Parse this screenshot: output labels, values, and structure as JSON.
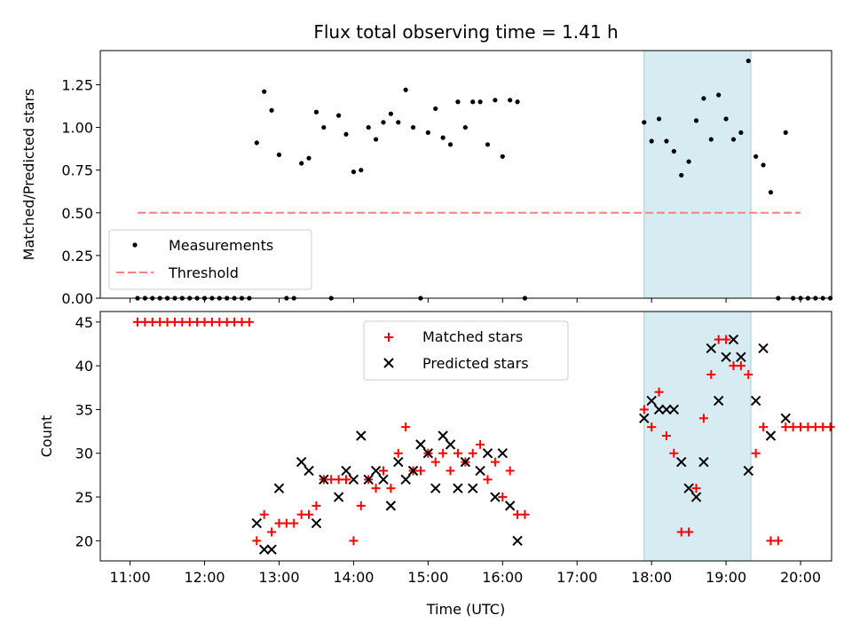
{
  "chart_data": [
    {
      "type": "scatter",
      "title": "Flux total observing time = 1.41 h",
      "ylabel": "Matched/Predicted stars",
      "ylim": [
        0,
        1.45
      ],
      "yticks": [
        0,
        0.25,
        0.5,
        0.75,
        1.0,
        1.25
      ],
      "ytick_labels": [
        "0.00",
        "0.25",
        "0.50",
        "0.75",
        "1.00",
        "1.25"
      ],
      "legend_position": "lower-left",
      "highlight_span": [
        "17:54",
        "19:20"
      ],
      "threshold": {
        "name": "Threshold",
        "y": 0.5,
        "x_range": [
          "11:06",
          "20:00"
        ],
        "color": "#ff7f7f"
      },
      "series": [
        {
          "name": "Measurements",
          "color": "#000000",
          "points": [
            [
              "11:06",
              0
            ],
            [
              "11:12",
              0
            ],
            [
              "11:18",
              0
            ],
            [
              "11:24",
              0
            ],
            [
              "11:30",
              0
            ],
            [
              "11:36",
              0
            ],
            [
              "11:42",
              0
            ],
            [
              "11:48",
              0
            ],
            [
              "11:54",
              0
            ],
            [
              "12:00",
              0
            ],
            [
              "12:06",
              0
            ],
            [
              "12:12",
              0
            ],
            [
              "12:18",
              0
            ],
            [
              "12:24",
              0
            ],
            [
              "12:30",
              0
            ],
            [
              "12:36",
              0
            ],
            [
              "12:42",
              0.91
            ],
            [
              "12:48",
              1.21
            ],
            [
              "12:54",
              1.1
            ],
            [
              "13:00",
              0.84
            ],
            [
              "13:06",
              0
            ],
            [
              "13:12",
              0
            ],
            [
              "13:18",
              0.79
            ],
            [
              "13:24",
              0.82
            ],
            [
              "13:30",
              1.09
            ],
            [
              "13:36",
              1.0
            ],
            [
              "13:42",
              0
            ],
            [
              "13:48",
              1.07
            ],
            [
              "13:54",
              0.96
            ],
            [
              "14:00",
              0.74
            ],
            [
              "14:06",
              0.75
            ],
            [
              "14:12",
              1.0
            ],
            [
              "14:18",
              0.93
            ],
            [
              "14:24",
              1.03
            ],
            [
              "14:30",
              1.08
            ],
            [
              "14:36",
              1.03
            ],
            [
              "14:42",
              1.22
            ],
            [
              "14:48",
              1.0
            ],
            [
              "14:54",
              0
            ],
            [
              "15:00",
              0.97
            ],
            [
              "15:06",
              1.11
            ],
            [
              "15:12",
              0.94
            ],
            [
              "15:18",
              0.9
            ],
            [
              "15:24",
              1.15
            ],
            [
              "15:30",
              1.0
            ],
            [
              "15:36",
              1.15
            ],
            [
              "15:42",
              1.15
            ],
            [
              "15:48",
              0.9
            ],
            [
              "15:54",
              1.16
            ],
            [
              "16:00",
              0.83
            ],
            [
              "16:06",
              1.16
            ],
            [
              "16:12",
              1.15
            ],
            [
              "16:18",
              0
            ],
            [
              "17:54",
              1.03
            ],
            [
              "18:00",
              0.92
            ],
            [
              "18:06",
              1.05
            ],
            [
              "18:12",
              0.92
            ],
            [
              "18:18",
              0.86
            ],
            [
              "18:24",
              0.72
            ],
            [
              "18:30",
              0.8
            ],
            [
              "18:36",
              1.04
            ],
            [
              "18:42",
              1.17
            ],
            [
              "18:48",
              0.93
            ],
            [
              "18:54",
              1.19
            ],
            [
              "19:00",
              1.05
            ],
            [
              "19:06",
              0.93
            ],
            [
              "19:12",
              0.97
            ],
            [
              "19:18",
              1.39
            ],
            [
              "19:24",
              0.83
            ],
            [
              "19:30",
              0.78
            ],
            [
              "19:36",
              0.62
            ],
            [
              "19:42",
              0
            ],
            [
              "19:48",
              0.97
            ],
            [
              "19:54",
              0
            ],
            [
              "20:00",
              0
            ],
            [
              "20:06",
              0
            ],
            [
              "20:12",
              0
            ],
            [
              "20:18",
              0
            ],
            [
              "20:24",
              0
            ]
          ]
        }
      ]
    },
    {
      "type": "scatter",
      "xlabel": "Time (UTC)",
      "ylabel": "Count",
      "xlim": [
        "10:36",
        "20:25"
      ],
      "ylim": [
        17.7,
        46.2
      ],
      "yticks": [
        20,
        25,
        30,
        35,
        40,
        45
      ],
      "ytick_labels": [
        "20",
        "25",
        "30",
        "35",
        "40",
        "45"
      ],
      "xticks": [
        "11:00",
        "12:00",
        "13:00",
        "14:00",
        "15:00",
        "16:00",
        "17:00",
        "18:00",
        "19:00",
        "20:00"
      ],
      "legend_position": "upper-center",
      "highlight_span": [
        "17:54",
        "19:20"
      ],
      "series": [
        {
          "name": "Matched stars",
          "marker": "plus",
          "color": "#ff0000",
          "points": [
            [
              "11:06",
              45
            ],
            [
              "11:12",
              45
            ],
            [
              "11:18",
              45
            ],
            [
              "11:24",
              45
            ],
            [
              "11:30",
              45
            ],
            [
              "11:36",
              45
            ],
            [
              "11:42",
              45
            ],
            [
              "11:48",
              45
            ],
            [
              "11:54",
              45
            ],
            [
              "12:00",
              45
            ],
            [
              "12:06",
              45
            ],
            [
              "12:12",
              45
            ],
            [
              "12:18",
              45
            ],
            [
              "12:24",
              45
            ],
            [
              "12:30",
              45
            ],
            [
              "12:36",
              45
            ],
            [
              "12:42",
              20
            ],
            [
              "12:48",
              23
            ],
            [
              "12:54",
              21
            ],
            [
              "13:00",
              22
            ],
            [
              "13:06",
              22
            ],
            [
              "13:12",
              22
            ],
            [
              "13:18",
              23
            ],
            [
              "13:24",
              23
            ],
            [
              "13:30",
              24
            ],
            [
              "13:36",
              27
            ],
            [
              "13:42",
              27
            ],
            [
              "13:48",
              27
            ],
            [
              "13:54",
              27
            ],
            [
              "14:00",
              20
            ],
            [
              "14:06",
              24
            ],
            [
              "14:12",
              27
            ],
            [
              "14:18",
              26
            ],
            [
              "14:24",
              28
            ],
            [
              "14:30",
              26
            ],
            [
              "14:36",
              30
            ],
            [
              "14:42",
              33
            ],
            [
              "14:48",
              28
            ],
            [
              "14:54",
              28
            ],
            [
              "15:00",
              30
            ],
            [
              "15:06",
              29
            ],
            [
              "15:12",
              30
            ],
            [
              "15:18",
              28
            ],
            [
              "15:24",
              30
            ],
            [
              "15:30",
              29
            ],
            [
              "15:36",
              30
            ],
            [
              "15:42",
              31
            ],
            [
              "15:48",
              27
            ],
            [
              "15:54",
              29
            ],
            [
              "16:00",
              25
            ],
            [
              "16:06",
              28
            ],
            [
              "16:12",
              23
            ],
            [
              "16:18",
              23
            ],
            [
              "17:54",
              35
            ],
            [
              "18:00",
              33
            ],
            [
              "18:06",
              37
            ],
            [
              "18:12",
              32
            ],
            [
              "18:18",
              30
            ],
            [
              "18:24",
              21
            ],
            [
              "18:30",
              21
            ],
            [
              "18:36",
              26
            ],
            [
              "18:42",
              34
            ],
            [
              "18:48",
              39
            ],
            [
              "18:54",
              43
            ],
            [
              "19:00",
              43
            ],
            [
              "19:06",
              40
            ],
            [
              "19:12",
              40
            ],
            [
              "19:18",
              39
            ],
            [
              "19:24",
              30
            ],
            [
              "19:30",
              33
            ],
            [
              "19:36",
              20
            ],
            [
              "19:42",
              20
            ],
            [
              "19:48",
              33
            ],
            [
              "19:54",
              33
            ],
            [
              "20:00",
              33
            ],
            [
              "20:06",
              33
            ],
            [
              "20:12",
              33
            ],
            [
              "20:18",
              33
            ],
            [
              "20:24",
              33
            ]
          ]
        },
        {
          "name": "Predicted stars",
          "marker": "x",
          "color": "#000000",
          "points": [
            [
              "12:42",
              22
            ],
            [
              "12:48",
              19
            ],
            [
              "12:54",
              19
            ],
            [
              "13:00",
              26
            ],
            [
              "13:18",
              29
            ],
            [
              "13:24",
              28
            ],
            [
              "13:30",
              22
            ],
            [
              "13:36",
              27
            ],
            [
              "13:48",
              25
            ],
            [
              "13:54",
              28
            ],
            [
              "14:00",
              27
            ],
            [
              "14:06",
              32
            ],
            [
              "14:12",
              27
            ],
            [
              "14:18",
              28
            ],
            [
              "14:24",
              27
            ],
            [
              "14:30",
              24
            ],
            [
              "14:36",
              29
            ],
            [
              "14:42",
              27
            ],
            [
              "14:48",
              28
            ],
            [
              "14:54",
              31
            ],
            [
              "15:00",
              30
            ],
            [
              "15:06",
              26
            ],
            [
              "15:12",
              32
            ],
            [
              "15:18",
              31
            ],
            [
              "15:24",
              26
            ],
            [
              "15:30",
              29
            ],
            [
              "15:36",
              26
            ],
            [
              "15:42",
              28
            ],
            [
              "15:48",
              30
            ],
            [
              "15:54",
              25
            ],
            [
              "16:00",
              30
            ],
            [
              "16:06",
              24
            ],
            [
              "16:12",
              20
            ],
            [
              "17:54",
              34
            ],
            [
              "18:00",
              36
            ],
            [
              "18:06",
              35
            ],
            [
              "18:12",
              35
            ],
            [
              "18:18",
              35
            ],
            [
              "18:24",
              29
            ],
            [
              "18:30",
              26
            ],
            [
              "18:36",
              25
            ],
            [
              "18:42",
              29
            ],
            [
              "18:48",
              42
            ],
            [
              "18:54",
              36
            ],
            [
              "19:00",
              41
            ],
            [
              "19:06",
              43
            ],
            [
              "19:12",
              41
            ],
            [
              "19:18",
              28
            ],
            [
              "19:24",
              36
            ],
            [
              "19:30",
              42
            ],
            [
              "19:36",
              32
            ],
            [
              "19:48",
              34
            ]
          ]
        }
      ]
    }
  ]
}
